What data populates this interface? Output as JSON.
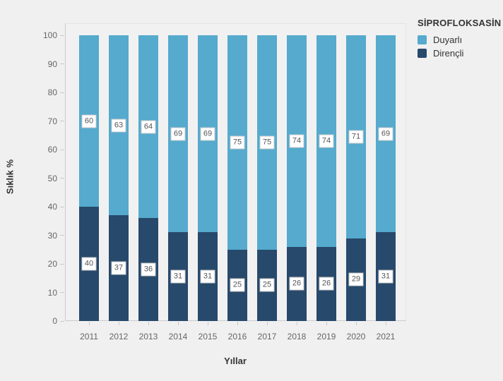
{
  "chart_data": {
    "type": "bar",
    "stacked": true,
    "orientation": "vertical",
    "title": "SİPROFLOKSASİN",
    "xlabel": "Yıllar",
    "ylabel": "Sıklık %",
    "ylim": [
      0,
      100
    ],
    "ytick_step": 10,
    "grid": false,
    "bar_value_labels_shown": true,
    "legend_position": "top-right",
    "categories": [
      "2011",
      "2012",
      "2013",
      "2014",
      "2015",
      "2016",
      "2017",
      "2018",
      "2019",
      "2020",
      "2021"
    ],
    "series": [
      {
        "name": "Duyarlı",
        "color": "#55aacd",
        "values": [
          60,
          63,
          64,
          69,
          69,
          75,
          75,
          74,
          74,
          71,
          69
        ]
      },
      {
        "name": "Dirençli",
        "color": "#27496b",
        "values": [
          40,
          37,
          36,
          31,
          31,
          25,
          25,
          26,
          26,
          29,
          31
        ]
      }
    ],
    "colors": {
      "background": "#f0f0f1",
      "susceptible": "#55aacd",
      "resistant": "#27496b",
      "axis_text": "#666666",
      "title_text": "#333333"
    }
  }
}
